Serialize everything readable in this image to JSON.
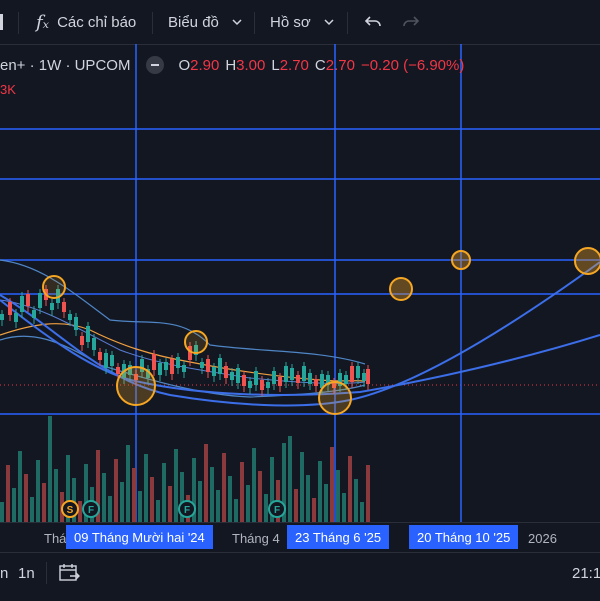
{
  "toolbar": {
    "indicators_label": "Các chỉ báo",
    "chart_type_label": "Biểu đồ",
    "profile_label": "Hồ sơ"
  },
  "legend": {
    "symbol": "en+ · 1W · UPCOM",
    "open_label": "O",
    "open": "2.90",
    "high_label": "H",
    "high": "3.00",
    "low_label": "L",
    "low": "2.70",
    "close_label": "C",
    "close": "2.70",
    "change": "−0.20 (−6.90%)",
    "volume": "3K"
  },
  "x_axis": {
    "label_partial": "Thá",
    "highlight_1": "09 Tháng Mười hai '24",
    "label_2": "Tháng 4",
    "highlight_2": "23 Tháng 6 '25",
    "highlight_3": "20 Tháng 10 '25",
    "label_3": "2026"
  },
  "events": [
    "S",
    "F",
    "F",
    "F"
  ],
  "bottom": {
    "range_a": "n",
    "range_b": "1n",
    "time": "21:1"
  },
  "colors": {
    "background": "#131722",
    "up": "#26a69a",
    "down": "#ef5350",
    "accent": "#2962ff",
    "circle": "#f5a623"
  }
}
